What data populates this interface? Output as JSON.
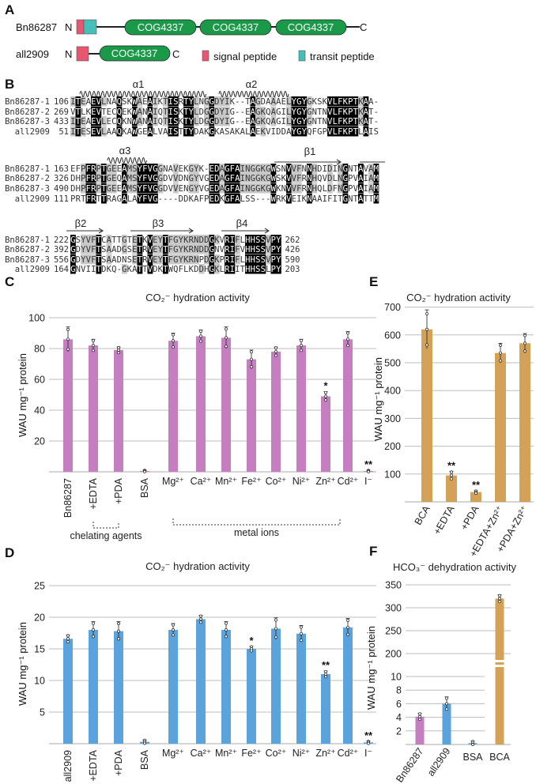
{
  "panels": {
    "a": "A",
    "b": "B",
    "c": "C",
    "d": "D",
    "e": "E",
    "f": "F"
  },
  "domain_diagram": {
    "proteins": [
      {
        "name": "Bn86287",
        "n": "N",
        "c": "C",
        "domains": [
          "COG4337",
          "COG4337",
          "COG4337"
        ]
      },
      {
        "name": "all2909",
        "n": "N",
        "c": "C",
        "domains": [
          "COG4337"
        ]
      }
    ],
    "legend": [
      {
        "label": "signal peptide",
        "color": "#e8566f"
      },
      {
        "label": "transit peptide",
        "color": "#45bfb8"
      }
    ],
    "domain_color": "#1a9a48"
  },
  "alignment": {
    "blocks": [
      {
        "rows": [
          {
            "name": "Bn86287-1",
            "start": "106",
            "seq": "ITEAEVLNAQSKWAEAIKTISRTYLNGGDYIK--TAGDAAAELYGYGKSKVLFKPTKAA-"
          },
          {
            "name": "Bn86287-2",
            "start": "269",
            "seq": "VTLKEVTECQEKWANAIQTISKTYLDGGDYIG--EAGKQAGILYGYGNTNVLFKPTKAT-"
          },
          {
            "name": "Bn86287-3",
            "start": "433",
            "seq": "ITEAEVLECQKNWANAIQTISKTYLDGGDYIG--EAGKQAGILYGYGNTNVLFKPTKAT-"
          },
          {
            "name": "all2909",
            "start": "51",
            "seq": "ITESEVLAAQKAWGEALVAISTTYDAKGKASAKALAEKVIDDAYGYQFGPVLFKPTLAIS"
          }
        ],
        "structures": [
          "α1",
          "α2"
        ]
      },
      {
        "rows": [
          {
            "name": "Bn86287-1",
            "start": "163",
            "seq": "EFPFRPTGEEAMSYFVGGNAVEKGYK-EDAGFAINGGKGWSNVVFNNHDIDINGNTAVAM"
          },
          {
            "name": "Bn86287-2",
            "start": "326",
            "seq": "DHPFRPTGEQAMSYFVGGDVVDNGYVGEDAGFAINGGKGWSKVVFRNHQVDLNGPVAIAM"
          },
          {
            "name": "Bn86287-3",
            "start": "490",
            "seq": "DHPFRPTGEEAMSYFVGGDVVENGYVGEDAGFAINGGKGWKNVVFRNHQLDFNGPVAIAM"
          },
          {
            "name": "all2909",
            "start": "111",
            "seq": "PRTFRTTRAGALAYFVG----DDKAFPEDKGFALSS---WRKVEIKNAAIFITGNTATTM"
          }
        ],
        "structures": [
          "α3",
          "β1"
        ]
      },
      {
        "rows": [
          {
            "name": "Bn86287-1",
            "start": "222",
            "seq": "GSYVFTCATTGTETKVEYTFGYKRNDDGKVRIFLHHSSVPY",
            "end": "262"
          },
          {
            "name": "Bn86287-2",
            "start": "392",
            "seq": "GDYVFTSAADGSETRVEYTFGYKRNDDGNVRIFVHHSSVPY",
            "end": "426"
          },
          {
            "name": "Bn86287-3",
            "start": "556",
            "seq": "GDYVFTSAADNSETRVEYTFGYKRNPDGKPRIFLHHSSVPY",
            "end": "590"
          },
          {
            "name": "all2909",
            "start": "164",
            "seq": "GNVIITDKQ-GKATTVDKTWQFLKDDHGKLRIITHHSSLPY",
            "end": "203"
          }
        ],
        "structures": [
          "β2",
          "β3",
          "β4"
        ]
      }
    ]
  },
  "chart_data": [
    {
      "id": "C",
      "type": "bar",
      "title": "CO₂⁻ hydration activity",
      "ylabel": "WAU mg⁻¹ protein",
      "ylim": [
        0,
        100
      ],
      "yticks": [
        20,
        40,
        60,
        80,
        100
      ],
      "categories": [
        "Bn86287",
        "+EDTA",
        "+PDA",
        "BSA",
        "Mg²⁺",
        "Ca²⁺",
        "Mn²⁺",
        "Fe²⁺",
        "Co²⁺",
        "Ni²⁺",
        "Zn²⁺",
        "Cd²⁺",
        "I⁻"
      ],
      "values": [
        86,
        82,
        79,
        0.5,
        85,
        88,
        87,
        73,
        78,
        82,
        49,
        86,
        0.5
      ],
      "errors": [
        8,
        4,
        2,
        0.5,
        5,
        4,
        7,
        6,
        3,
        4,
        3,
        5,
        0.5
      ],
      "significance": [
        "",
        "",
        "",
        "",
        "",
        "",
        "",
        "",
        "",
        "",
        "*",
        "",
        "**"
      ],
      "color": "#c57fc1",
      "groups": [
        {
          "label": "chelating agents"
        },
        {
          "label": "metal ions"
        }
      ]
    },
    {
      "id": "D",
      "type": "bar",
      "title": "CO₂⁻ hydration activity",
      "ylabel": "WAU mg⁻¹ protein",
      "ylim": [
        0,
        25
      ],
      "yticks": [
        5,
        10,
        15,
        20,
        25
      ],
      "categories": [
        "all2909",
        "+EDTA",
        "+PDA",
        "BSA",
        "Mg²⁺",
        "Ca²⁺",
        "Mn²⁺",
        "Fe²⁺",
        "Co²⁺",
        "Ni²⁺",
        "Zn²⁺",
        "Cd²⁺",
        "I⁻"
      ],
      "values": [
        16.6,
        18.0,
        17.8,
        0.3,
        18.0,
        19.7,
        18.0,
        15.0,
        18.2,
        17.4,
        11.0,
        18.4,
        0.2
      ],
      "errors": [
        0.6,
        1.3,
        1.5,
        0.3,
        1.0,
        0.6,
        1.3,
        0.4,
        1.7,
        1.3,
        0.5,
        1.4,
        0.2
      ],
      "significance": [
        "",
        "",
        "",
        "",
        "",
        "",
        "",
        "*",
        "",
        "",
        "**",
        "",
        "**"
      ],
      "color": "#5aa3dc"
    },
    {
      "id": "E",
      "type": "bar",
      "title": "CO₂⁻ hydration activity",
      "ylabel": "WAU mg⁻¹ protein",
      "ylim": [
        0,
        700
      ],
      "yticks": [
        100,
        200,
        300,
        400,
        500,
        600,
        700
      ],
      "categories": [
        "BCA",
        "+EDTA",
        "+PDA",
        "+EDTA+Zn²⁺",
        "+PDA+Zn²⁺"
      ],
      "values": [
        620,
        95,
        35,
        535,
        570
      ],
      "errors": [
        70,
        15,
        5,
        35,
        35
      ],
      "significance": [
        "",
        "**",
        "**",
        "",
        ""
      ],
      "color": "#d4a256"
    },
    {
      "id": "F",
      "type": "bar",
      "title": "HCO₃⁻ dehydration activity",
      "ylabel": "WAU mg⁻¹ protein",
      "axis_break": [
        10,
        200
      ],
      "ylim": [
        0,
        350
      ],
      "yticks": [
        2,
        4,
        6,
        8,
        10,
        200,
        250,
        300,
        350
      ],
      "categories": [
        "Bn86287",
        "all2909",
        "BSA",
        "BCA"
      ],
      "values": [
        4.1,
        6.0,
        0.2,
        320
      ],
      "errors": [
        0.5,
        1.0,
        0.3,
        8
      ],
      "colors": [
        "#c57fc1",
        "#5aa3dc",
        "#5aa3dc",
        "#d4a256"
      ]
    }
  ]
}
